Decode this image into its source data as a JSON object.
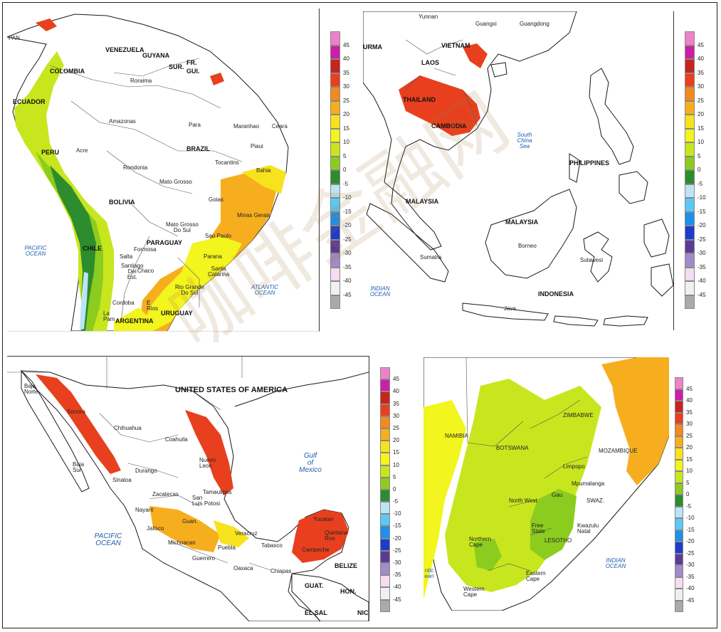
{
  "watermark": "咖啡金融网",
  "legend_values": [
    "45",
    "40",
    "35",
    "30",
    "25",
    "20",
    "15",
    "10",
    "5",
    "0",
    "-5",
    "-10",
    "-15",
    "-20",
    "-25",
    "-30",
    "-35",
    "-40",
    "-45"
  ],
  "legend_colors": [
    "#ee82c8",
    "#cc1ea8",
    "#c8241e",
    "#e8401e",
    "#f5881e",
    "#f7ae1e",
    "#f7e21e",
    "#f2f51e",
    "#c8e61e",
    "#8ccc1e",
    "#2d8c2d",
    "#bce4f5",
    "#5cc8f5",
    "#1e90e8",
    "#1e3ccc",
    "#5a3c96",
    "#a08cc8",
    "#f5dcf0",
    "#f0f0f0",
    "#aaaaaa"
  ],
  "panels": {
    "south_america": {
      "labels": {
        "pan": "PAN",
        "venezuela": "VENEZUELA",
        "guyana": "GUYANA",
        "sur": "SUR.",
        "fr": "FR.",
        "gui": "GUI.",
        "colombia": "COLOMBIA",
        "ecuador": "ECUADOR",
        "peru": "PERU",
        "roraima": "Roraima",
        "amazonas": "Amazonas",
        "para": "Para",
        "maranhao": "Maranhao",
        "ceara": "Ceara",
        "piaui": "Piaui",
        "acre": "Acre",
        "rondonia": "Rondonia",
        "brazil": "BRAZIL",
        "tocantins": "Tocantins",
        "bahia": "Bahia",
        "bolivia": "BOLIVIA",
        "mato_grosso": "Mato Grosso",
        "goias": "Goias",
        "minas_gerais": "Minas Gerais",
        "mato_grosso_do_sul": "Mato Grosso\nDo Sul",
        "paraguay": "PARAGUAY",
        "sao_paulo": "Sao Paulo",
        "chile": "CHILE",
        "parana": "Parana",
        "formosa": "Formosa",
        "chaco": "Chaco",
        "santa_catarina": "Santa\nCatarina",
        "salta": "Salta",
        "santiago_del_estero": "Santiago\nDel\nEst.",
        "rio_grande_do_sul": "Rio Grande\nDo Sul",
        "cordoba": "Cordoba",
        "entre_rios": "E\nRios",
        "uruguay": "URUGUAY",
        "argentina": "ARGENTINA",
        "la_pampa": "La\nPam",
        "pacific_ocean": "PACIFIC\nOCEAN",
        "atlantic_ocean": "ATLANTIC\nOCEAN"
      }
    },
    "southeast_asia": {
      "labels": {
        "yunnan": "Yunnan",
        "guangxi": "Guangxi",
        "guangdong": "Guangdong",
        "burma": "URMA",
        "vietnam": "VIETNAM",
        "laos": "LAOS",
        "thailand": "THAILAND",
        "cambodia": "CAMBODIA",
        "south_china_sea": "South\nChina\nSea",
        "philippines": "PHILIPPINES",
        "malaysia_w": "MALAYSIA",
        "malaysia_e": "MALAYSIA",
        "sumatra": "Sumatra",
        "borneo": "Borneo",
        "sulawesi": "Sulawesi",
        "indonesia": "INDONESIA",
        "java": "Java",
        "indian_ocean": "INDIAN\nOCEAN"
      }
    },
    "mexico": {
      "labels": {
        "baja_norte": "Baja\nNorte",
        "usa": "UNITED STATES OF AMERICA",
        "sonora": "Sonora",
        "chihuahua": "Chihuahua",
        "coahuila": "Coahuila",
        "nuevo_leon": "Nuevo\nLeon",
        "baja_sur": "Baja\nSur",
        "sinaloa": "Sinaloa",
        "durango": "Durango",
        "tamaulipas": "Tamaulipas",
        "zacatecas": "Zacatecas",
        "san_luis_potosi": "San\nLuis Potosi",
        "nayarit": "Nayarit",
        "jalisco": "Jalisco",
        "guanajuato": "Guan.",
        "veracruz": "Veracruz",
        "tabasco": "Tabasco",
        "michoacan": "Michoacan",
        "guerrero": "Guerrero",
        "puebla": "Puebla",
        "oaxaca": "Oaxaca",
        "chiapas": "Chiapas",
        "yucatan": "Yucatan",
        "quintana_roo": "Quintana\nRoo",
        "campeche": "Campeche",
        "belize": "BELIZE",
        "guat": "GUAT.",
        "hon": "HON.",
        "el_sal": "EL SAL",
        "nic": "NIC",
        "gulf_of_mexico": "Gulf\nof\nMexico",
        "pacific_ocean": "PACIFIC\nOCEAN"
      }
    },
    "southern_africa": {
      "labels": {
        "namibia": "NAMIBIA",
        "botswana": "BOTSWANA",
        "zimbabwe": "ZIMBABWE",
        "mozambique": "MOZAMBIQUE",
        "limpopo": "Limpopo",
        "mpumalanga": "Mpumalanga",
        "north_west": "North West",
        "gauteng": "Gau",
        "swaziland": "SWAZ.",
        "free_state": "Free\nState",
        "kwazulu_natal": "Kwazulu\nNatal",
        "lesotho": "LESOTHO",
        "northern_cape": "Northern\nCape",
        "eastern_cape": "Eastern\nCape",
        "western_cape": "Western\nCape",
        "atlantic": "ntic\nean",
        "indian_ocean": "INDIAN\nOCEAN"
      }
    }
  }
}
